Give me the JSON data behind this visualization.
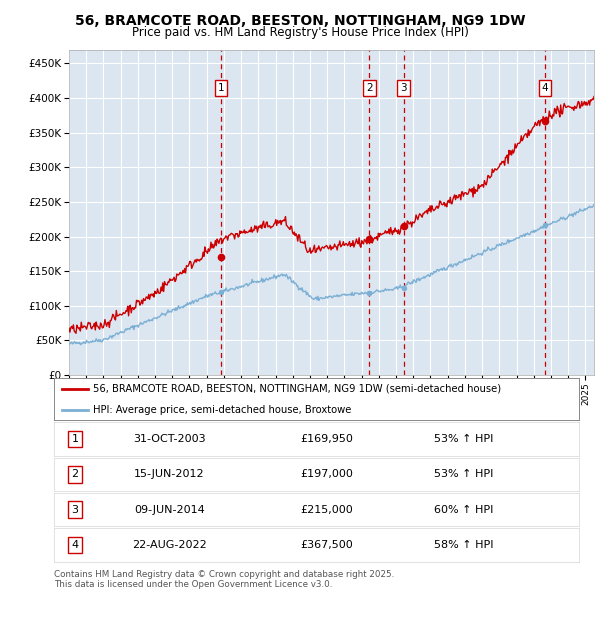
{
  "title": "56, BRAMCOTE ROAD, BEESTON, NOTTINGHAM, NG9 1DW",
  "subtitle": "Price paid vs. HM Land Registry's House Price Index (HPI)",
  "legend_line1": "56, BRAMCOTE ROAD, BEESTON, NOTTINGHAM, NG9 1DW (semi-detached house)",
  "legend_line2": "HPI: Average price, semi-detached house, Broxtowe",
  "footer": "Contains HM Land Registry data © Crown copyright and database right 2025.\nThis data is licensed under the Open Government Licence v3.0.",
  "transactions": [
    {
      "num": 1,
      "date": "31-OCT-2003",
      "price": 169950,
      "date_x": 2003.83,
      "hpi_pct": "53% ↑ HPI"
    },
    {
      "num": 2,
      "date": "15-JUN-2012",
      "price": 197000,
      "date_x": 2012.45,
      "hpi_pct": "53% ↑ HPI"
    },
    {
      "num": 3,
      "date": "09-JUN-2014",
      "price": 215000,
      "date_x": 2014.44,
      "hpi_pct": "60% ↑ HPI"
    },
    {
      "num": 4,
      "date": "22-AUG-2022",
      "price": 367500,
      "date_x": 2022.64,
      "hpi_pct": "58% ↑ HPI"
    }
  ],
  "hpi_color": "#7bafd4",
  "price_color": "#cc0000",
  "vline_color": "#cc0000",
  "background_color": "#dce6f1",
  "ylim": [
    0,
    470000
  ],
  "xlim_start": 1995.0,
  "xlim_end": 2025.5
}
